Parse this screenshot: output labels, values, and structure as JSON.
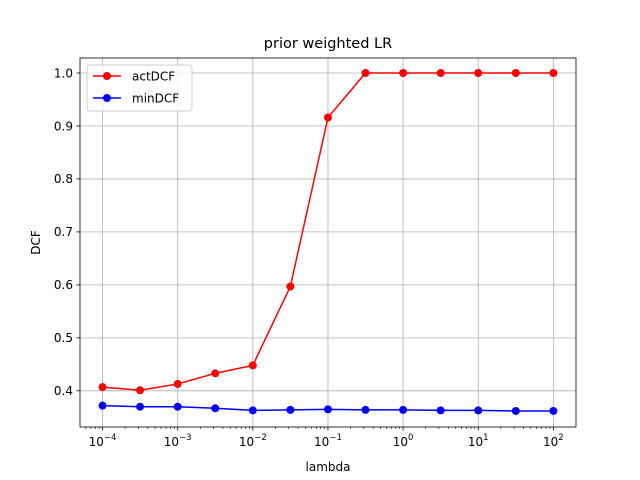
{
  "chart_data": {
    "type": "line",
    "title": "prior weighted LR",
    "xlabel": "lambda",
    "ylabel": "DCF",
    "xscale": "log",
    "x": [
      0.0001,
      0.000316,
      0.001,
      0.00316,
      0.01,
      0.0316,
      0.1,
      0.316,
      1,
      3.16,
      10,
      31.6,
      100
    ],
    "xlim": [
      5.01e-05,
      200
    ],
    "ylim": [
      0.3317,
      1.0283
    ],
    "xticks": [
      {
        "value": 0.0001,
        "base": "10",
        "exp": "−4"
      },
      {
        "value": 0.001,
        "base": "10",
        "exp": "−3"
      },
      {
        "value": 0.01,
        "base": "10",
        "exp": "−2"
      },
      {
        "value": 0.1,
        "base": "10",
        "exp": "−1"
      },
      {
        "value": 1,
        "base": "10",
        "exp": "0"
      },
      {
        "value": 10,
        "base": "10",
        "exp": "1"
      },
      {
        "value": 100,
        "base": "10",
        "exp": "2"
      }
    ],
    "yticks": [
      {
        "value": 0.4,
        "label": "0.4"
      },
      {
        "value": 0.5,
        "label": "0.5"
      },
      {
        "value": 0.6,
        "label": "0.6"
      },
      {
        "value": 0.7,
        "label": "0.7"
      },
      {
        "value": 0.8,
        "label": "0.8"
      },
      {
        "value": 0.9,
        "label": "0.9"
      },
      {
        "value": 1.0,
        "label": "1.0"
      }
    ],
    "grid": true,
    "legend_position": "top-left",
    "series": [
      {
        "name": "actDCF",
        "color": "#ff0000",
        "values": [
          0.407,
          0.401,
          0.413,
          0.433,
          0.448,
          0.597,
          0.916,
          1.0,
          1.0,
          1.0,
          1.0,
          1.0,
          1.0
        ]
      },
      {
        "name": "minDCF",
        "color": "#0000ff",
        "values": [
          0.372,
          0.37,
          0.37,
          0.367,
          0.363,
          0.364,
          0.365,
          0.364,
          0.364,
          0.363,
          0.363,
          0.362,
          0.362
        ]
      }
    ]
  }
}
